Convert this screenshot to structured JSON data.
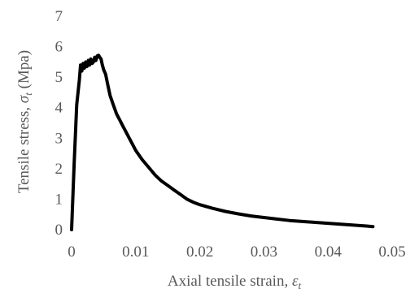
{
  "chart_data": {
    "type": "line",
    "title": "",
    "xlabel": {
      "prefix": "Axial tensile strain, ",
      "symbol": "ε",
      "subscript": "t"
    },
    "ylabel": {
      "prefix": "Tensile stress, ",
      "symbol": "σ",
      "subscript": "t",
      "suffix": " (Mpa)"
    },
    "xlim": [
      0,
      0.05
    ],
    "ylim": [
      0,
      7
    ],
    "x_ticks": [
      "0",
      "0.01",
      "0.02",
      "0.03",
      "0.04",
      "0.05"
    ],
    "y_ticks": [
      "0",
      "1",
      "2",
      "3",
      "4",
      "5",
      "6",
      "7"
    ],
    "grid": false,
    "legend": "none",
    "line_color": "#000000",
    "series": [
      {
        "x": [
          0,
          0.0004,
          0.0008,
          0.0012,
          0.0014,
          0.0016,
          0.0018,
          0.002,
          0.0022,
          0.0024,
          0.0026,
          0.0028,
          0.003,
          0.0032,
          0.0034,
          0.0036,
          0.0038,
          0.004,
          0.0042,
          0.0044,
          0.0046,
          0.0048,
          0.005,
          0.0053,
          0.0056,
          0.006,
          0.0065,
          0.007,
          0.0075,
          0.008,
          0.0085,
          0.009,
          0.0095,
          0.01,
          0.011,
          0.012,
          0.013,
          0.014,
          0.015,
          0.016,
          0.017,
          0.018,
          0.019,
          0.02,
          0.022,
          0.024,
          0.026,
          0.028,
          0.03,
          0.032,
          0.034,
          0.036,
          0.038,
          0.04,
          0.042,
          0.044,
          0.046,
          0.047
        ],
        "y": [
          0,
          2.2,
          4.1,
          4.9,
          5.4,
          5.2,
          5.45,
          5.3,
          5.5,
          5.35,
          5.55,
          5.4,
          5.6,
          5.45,
          5.5,
          5.65,
          5.55,
          5.7,
          5.72,
          5.65,
          5.6,
          5.4,
          5.25,
          5.1,
          4.8,
          4.4,
          4.1,
          3.8,
          3.6,
          3.4,
          3.2,
          3.0,
          2.8,
          2.6,
          2.3,
          2.05,
          1.8,
          1.6,
          1.45,
          1.3,
          1.15,
          1.0,
          0.9,
          0.82,
          0.7,
          0.6,
          0.52,
          0.45,
          0.4,
          0.35,
          0.3,
          0.27,
          0.24,
          0.21,
          0.18,
          0.15,
          0.12,
          0.1
        ]
      }
    ]
  }
}
